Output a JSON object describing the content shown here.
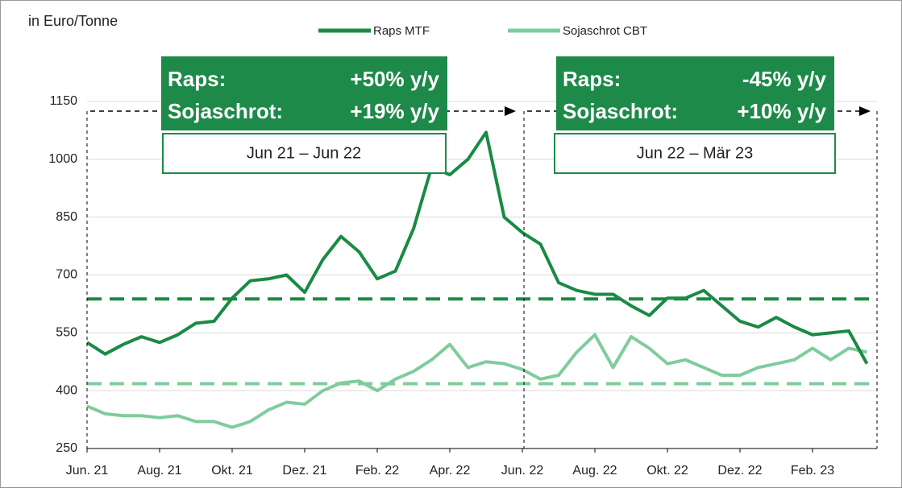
{
  "chart_data": {
    "type": "line",
    "axis_label": "in Euro/Tonne",
    "categories": [
      "Jun. 21",
      null,
      null,
      null,
      "Aug. 21",
      null,
      null,
      null,
      "Okt. 21",
      null,
      null,
      null,
      "Dez. 21",
      null,
      null,
      null,
      "Feb. 22",
      null,
      null,
      null,
      "Apr. 22",
      null,
      null,
      null,
      "Jun. 22",
      null,
      null,
      null,
      "Aug. 22",
      null,
      null,
      null,
      "Okt. 22",
      null,
      null,
      null,
      "Dez. 22",
      null,
      null,
      null,
      "Feb. 23",
      null,
      null,
      null
    ],
    "series": [
      {
        "name": "Raps MTF",
        "color": "#1a8a45",
        "values": [
          525,
          495,
          520,
          540,
          525,
          545,
          575,
          580,
          640,
          685,
          690,
          700,
          655,
          740,
          800,
          760,
          690,
          710,
          820,
          980,
          960,
          1000,
          1070,
          850,
          810,
          780,
          680,
          660,
          650,
          650,
          620,
          595,
          640,
          640,
          660,
          620,
          580,
          565,
          590,
          565,
          545,
          550,
          555,
          470
        ]
      },
      {
        "name": "Sojaschrot CBT",
        "color": "#7fcc9c",
        "values": [
          360,
          340,
          335,
          335,
          330,
          335,
          320,
          320,
          305,
          320,
          350,
          370,
          365,
          400,
          420,
          425,
          400,
          430,
          450,
          480,
          520,
          460,
          475,
          470,
          455,
          430,
          440,
          500,
          545,
          460,
          540,
          510,
          470,
          480,
          460,
          440,
          440,
          460,
          470,
          480,
          510,
          480,
          510,
          500
        ]
      }
    ],
    "reference_lines": [
      {
        "value": 638,
        "color": "#1a8a45"
      },
      {
        "value": 418,
        "color": "#7fcc9c"
      }
    ],
    "ylim": [
      250,
      1150
    ],
    "yticks": [
      250,
      400,
      550,
      700,
      850,
      1000,
      1150
    ],
    "grid": true,
    "annotations": [
      {
        "rows": [
          [
            "Raps:",
            "+50% y/y"
          ],
          [
            "Sojaschrot:",
            "+19% y/y"
          ]
        ],
        "period": "Jun 21 – Jun 22"
      },
      {
        "rows": [
          [
            "Raps:",
            "-45% y/y"
          ],
          [
            "Sojaschrot:",
            "+10% y/y"
          ]
        ],
        "period": "Jun 22 – Mär 23"
      }
    ]
  }
}
